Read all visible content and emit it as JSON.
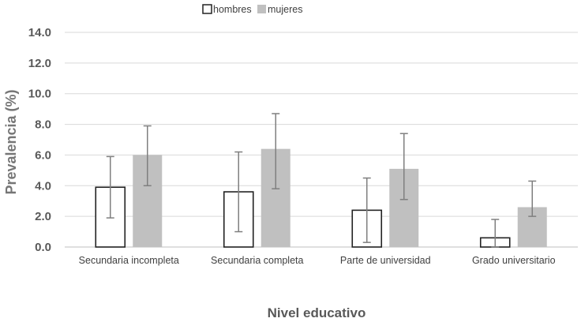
{
  "chart_data": {
    "type": "bar",
    "title": "",
    "xlabel": "Nivel educativo",
    "ylabel": "Prevalencia (%)",
    "ylim": [
      0,
      14
    ],
    "yticks": [
      "0.0",
      "2.0",
      "4.0",
      "6.0",
      "8.0",
      "10.0",
      "12.0",
      "14.0"
    ],
    "grid": true,
    "legend_position": "top",
    "categories": [
      "Secundaria incompleta",
      "Secundaria completa",
      "Parte de universidad",
      "Grado universitario"
    ],
    "series": [
      {
        "name": "hombres",
        "color": "#ffffff",
        "stroke": "#222222",
        "values": [
          3.9,
          3.6,
          2.4,
          0.6
        ],
        "error_low": [
          1.9,
          1.0,
          0.3,
          0.0
        ],
        "error_high": [
          5.9,
          6.2,
          4.5,
          1.8
        ]
      },
      {
        "name": "mujeres",
        "color": "#c0c0c0",
        "stroke": "#c0c0c0",
        "values": [
          6.0,
          6.4,
          5.1,
          2.6
        ],
        "error_low": [
          4.0,
          3.8,
          3.1,
          2.0
        ],
        "error_high": [
          7.9,
          8.7,
          7.4,
          4.3
        ]
      }
    ]
  }
}
